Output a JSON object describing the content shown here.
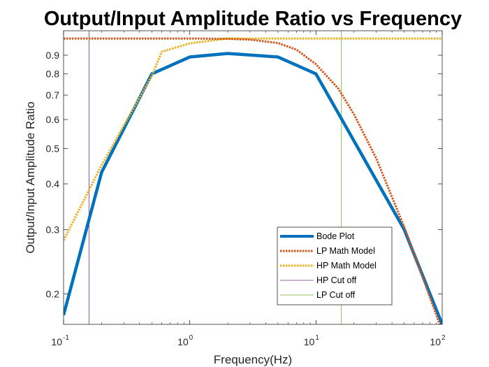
{
  "chart_data": {
    "type": "line",
    "title": "Output/Input Amplitude Ratio vs Frequency",
    "xlabel": "Frequency(Hz)",
    "ylabel": "Output/Input Amplitude Ratio",
    "xscale": "log",
    "yscale": "log",
    "xlim": [
      0.1,
      100
    ],
    "ylim": [
      0.165,
      1.05
    ],
    "x_ticks": [
      {
        "value": 0.1,
        "base": "10",
        "exp": "-1"
      },
      {
        "value": 1,
        "base": "10",
        "exp": "0"
      },
      {
        "value": 10,
        "base": "10",
        "exp": "1"
      },
      {
        "value": 100,
        "base": "10",
        "exp": "2"
      }
    ],
    "y_ticks": [
      {
        "value": 0.2,
        "label": "0.2"
      },
      {
        "value": 0.3,
        "label": "0.3"
      },
      {
        "value": 0.4,
        "label": "0.4"
      },
      {
        "value": 0.5,
        "label": "0.5"
      },
      {
        "value": 0.6,
        "label": "0.6"
      },
      {
        "value": 0.7,
        "label": "0.7"
      },
      {
        "value": 0.8,
        "label": "0.8"
      },
      {
        "value": 0.9,
        "label": "0.9"
      }
    ],
    "grid": false,
    "legend_position": "lower-right",
    "series": [
      {
        "name": "Bode Plot",
        "color": "#0072BD",
        "style": "solid",
        "x": [
          0.1,
          0.2,
          0.5,
          1,
          2,
          5,
          10,
          50,
          100
        ],
        "y": [
          0.175,
          0.43,
          0.8,
          0.89,
          0.91,
          0.89,
          0.8,
          0.3,
          0.165
        ]
      },
      {
        "name": "LP Math Model",
        "color": "#D95319",
        "style": "dotted",
        "x": [
          0.1,
          0.5,
          1,
          2,
          3,
          5,
          7,
          10,
          15,
          20,
          30,
          50,
          70,
          100
        ],
        "y": [
          1.0,
          1.0,
          1.0,
          0.998,
          0.993,
          0.972,
          0.932,
          0.85,
          0.73,
          0.62,
          0.47,
          0.305,
          0.222,
          0.158
        ]
      },
      {
        "name": "HP Math Model",
        "color": "#EDB120",
        "style": "dotted",
        "x": [
          0.1,
          0.2,
          0.5,
          0.6,
          1,
          2,
          5,
          10,
          100
        ],
        "y": [
          0.28,
          0.45,
          0.79,
          0.92,
          0.97,
          1.0,
          1.0,
          1.0,
          1.0
        ]
      },
      {
        "name": "HP Cut off",
        "color": "#7E2F8E",
        "style": "solid-thin",
        "x": [
          0.159,
          0.159
        ],
        "y": [
          0.165,
          1.05
        ]
      },
      {
        "name": "LP Cut off",
        "color": "#77AC30",
        "style": "solid-thin",
        "x": [
          15.9,
          15.9
        ],
        "y": [
          0.165,
          1.05
        ]
      }
    ]
  }
}
